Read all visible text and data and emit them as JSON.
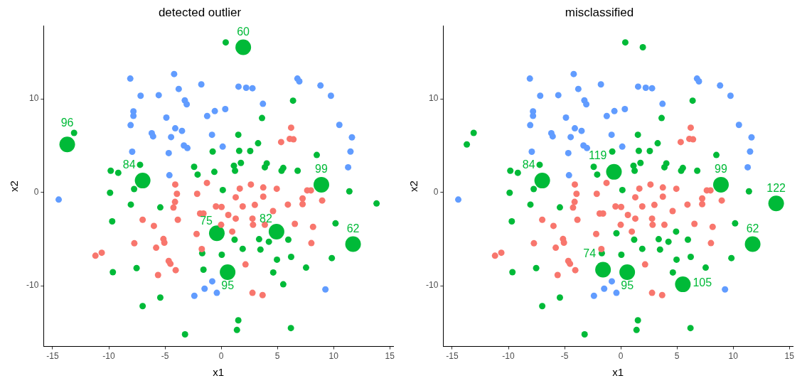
{
  "chart_data": [
    {
      "type": "scatter",
      "title": "detected outlier",
      "xlabel": "x1",
      "ylabel": "x2",
      "marker": "circle",
      "xlim": [
        -15.8,
        15.3
      ],
      "ylim": [
        -16.5,
        17.8
      ],
      "xticks": [
        -15,
        -10,
        -5,
        0,
        5,
        10,
        15
      ],
      "yticks": [
        -10,
        0,
        10
      ],
      "series": [
        {
          "color": "#619cff",
          "x": [
            -8.09,
            -4.19,
            -1.77,
            -3.78,
            -7.17,
            -5.56,
            -3.24,
            -3.07,
            -7.81,
            -7.81,
            -4.88,
            -0.57,
            -1.25,
            -8.06,
            -4.09,
            -3.49,
            -6.18,
            -6.06,
            -4.46,
            -0.82,
            -3.32,
            -3.01,
            0.13,
            -7.92,
            -4.67,
            -4.61,
            0.36,
            1.54,
            2.22,
            2.78,
            3.71,
            6.78,
            6.95,
            8.83,
            9.76,
            10.51,
            11.63,
            11.5,
            11.29,
            -14.46,
            -0.8,
            -1.48,
            -2.39,
            -0.39,
            9.27
          ],
          "values": [
            12.16,
            12.65,
            11.54,
            11.05,
            10.32,
            10.39,
            9.83,
            9.41,
            8.65,
            8.18,
            7.99,
            8.68,
            8.16,
            7.18,
            6.84,
            6.57,
            6.32,
            5.98,
            5.9,
            6.15,
            5.0,
            4.73,
            4.88,
            4.34,
            4.19,
            1.82,
            8.9,
            11.3,
            11.18,
            11.13,
            9.46,
            12.16,
            11.86,
            11.42,
            10.32,
            7.21,
            5.88,
            4.36,
            2.67,
            -0.78,
            -9.53,
            -10.32,
            -11.08,
            -10.76,
            -10.39
          ]
        },
        {
          "color": "#f8766d",
          "x": [
            -4.09,
            -1.27,
            -3.94,
            -2.14,
            6.22,
            5.33,
            6.1,
            6.43,
            1.65,
            2.64,
            3.74,
            4.94,
            7.65,
            7.98,
            1.29,
            3.74,
            7.24,
            7.24,
            8.98,
            -0.47,
            0.03,
            1.91,
            2.99,
            5.93,
            0.63,
            1.29,
            2.78,
            2.83,
            3.88,
            4.61,
            -0.01,
            0.98,
            6.55,
            8.17,
            8.02,
            2.16,
            2.78,
            3.68,
            -4.11,
            -4.25,
            -1.88,
            -1.58,
            -6.99,
            -3.86,
            -5.99,
            -2.19,
            -5.14,
            -5.06,
            -7.73,
            -5.79,
            -1.73,
            -11.19,
            -10.63,
            -4.67,
            -4.52,
            -4.05,
            -5.62
          ],
          "values": [
            0.83,
            1.0,
            -0.17,
            -0.17,
            6.91,
            5.37,
            5.71,
            5.66,
            0.39,
            0.83,
            0.51,
            0.37,
            0.2,
            0.2,
            -0.54,
            -0.47,
            -0.66,
            -1.27,
            -0.88,
            -1.52,
            -1.57,
            -1.52,
            -1.35,
            -1.32,
            -2.43,
            -2.82,
            -2.82,
            -3.48,
            -3.48,
            -2.01,
            -3.48,
            -4.21,
            -3.38,
            -3.7,
            -5.44,
            -7.72,
            -10.76,
            -11.0,
            -1.03,
            -1.64,
            -2.28,
            -2.28,
            -2.94,
            -2.94,
            -3.6,
            -4.46,
            -5.0,
            -5.39,
            -5.46,
            -5.93,
            -6.08,
            -6.79,
            -6.47,
            -7.35,
            -7.65,
            -8.33,
            -8.85
          ]
        },
        {
          "color": "#00ba38",
          "x": [
            0.4,
            -13.09,
            -0.76,
            -7.22,
            -2.41,
            -9.83,
            -9.16,
            -2.1,
            -7.75,
            -9.89,
            0.14,
            6.39,
            3.63,
            1.52,
            1.6,
            2.58,
            3.28,
            1.13,
            1.23,
            1.75,
            3.88,
            4.05,
            5.37,
            5.52,
            6.8,
            8.5,
            11.4,
            10.17,
            1.19,
            3.37,
            4.24,
            5.97,
            1.91,
            3.49,
            0.05,
            4.96,
            6.22,
            9.84,
            7.55,
            4.63,
            1.52,
            1.4,
            6.2,
            -8.04,
            -5.42,
            -9.7,
            -1.69,
            -9.64,
            -7.53,
            -5.42,
            -6.99,
            -3.22,
            -0.61,
            13.82,
            -1.58,
            5.52
          ],
          "values": [
            16.03,
            6.35,
            4.36,
            2.94,
            2.72,
            2.3,
            2.08,
            1.89,
            0.35,
            -0.05,
            0.24,
            9.8,
            7.94,
            6.15,
            4.43,
            4.41,
            5.24,
            2.84,
            2.3,
            3.14,
            2.67,
            3.09,
            2.3,
            2.6,
            2.3,
            3.99,
            0.1,
            -3.33,
            -5.07,
            -5.02,
            -5.29,
            -5.07,
            -6.05,
            -6.13,
            -6.69,
            -7.21,
            -6.91,
            -7.04,
            -8.06,
            -8.58,
            -13.7,
            -14.73,
            -14.53,
            -1.32,
            -1.62,
            -3.11,
            -6.52,
            -8.55,
            -8.11,
            -11.27,
            -12.18,
            -15.2,
            2.18,
            -1.2,
            -8.28,
            -9.85
          ]
        },
        {
          "type": "bubble",
          "color": "#00ba38",
          "x": [
            1.96,
            -13.7,
            -6.99,
            8.91,
            -0.39,
            4.92,
            11.73,
            0.57
          ],
          "values": [
            15.51,
            5.12,
            1.25,
            0.81,
            -4.39,
            -4.21,
            -5.54,
            -8.55
          ],
          "sizes": [
            1,
            1,
            1,
            1,
            1,
            1,
            1,
            1
          ]
        }
      ],
      "annotations": [
        {
          "text": "60",
          "x": 1.96,
          "y": 15.51
        },
        {
          "text": "96",
          "x": -13.7,
          "y": 5.12
        },
        {
          "text": "84",
          "x": -6.99,
          "y": 1.25
        },
        {
          "text": "99",
          "x": 8.91,
          "y": 0.81
        },
        {
          "text": "75",
          "x": -0.39,
          "y": -4.39
        },
        {
          "text": "82",
          "x": 4.92,
          "y": -4.21
        },
        {
          "text": "62",
          "x": 11.73,
          "y": -5.54
        },
        {
          "text": "95",
          "x": 0.57,
          "y": -8.55
        }
      ]
    },
    {
      "type": "scatter",
      "title": "misclassified",
      "xlabel": "x1",
      "ylabel": "x2",
      "marker": "circle",
      "xlim": [
        -15.8,
        15.3
      ],
      "ylim": [
        -16.5,
        17.8
      ],
      "xticks": [
        -15,
        -10,
        -5,
        0,
        5,
        10,
        15
      ],
      "yticks": [
        -10,
        0,
        10
      ],
      "series": [
        {
          "color": "#619cff",
          "x": [
            -8.09,
            -4.19,
            -1.77,
            -3.78,
            -7.17,
            -5.56,
            -3.24,
            -3.07,
            -7.81,
            -7.81,
            -4.88,
            -0.57,
            -1.25,
            -8.06,
            -4.09,
            -3.49,
            -6.18,
            -6.06,
            -4.46,
            -0.82,
            -3.32,
            -3.01,
            0.13,
            -7.92,
            -4.67,
            -4.61,
            0.36,
            1.54,
            2.22,
            2.78,
            3.71,
            6.78,
            6.95,
            8.83,
            9.76,
            10.51,
            11.63,
            11.5,
            11.29,
            -14.46,
            -0.8,
            -1.48,
            -2.39,
            -0.39,
            9.27
          ],
          "values": [
            12.16,
            12.65,
            11.54,
            11.05,
            10.32,
            10.39,
            9.83,
            9.41,
            8.65,
            8.18,
            7.99,
            8.68,
            8.16,
            7.18,
            6.84,
            6.57,
            6.32,
            5.98,
            5.9,
            6.15,
            5.0,
            4.73,
            4.88,
            4.34,
            4.19,
            1.82,
            8.9,
            11.3,
            11.18,
            11.13,
            9.46,
            12.16,
            11.86,
            11.42,
            10.32,
            7.21,
            5.88,
            4.36,
            2.67,
            -0.78,
            -9.53,
            -10.32,
            -11.08,
            -10.76,
            -10.39
          ]
        },
        {
          "color": "#f8766d",
          "x": [
            -4.09,
            -1.27,
            -3.94,
            -2.14,
            6.22,
            5.33,
            6.1,
            6.43,
            1.65,
            2.64,
            3.74,
            4.94,
            7.65,
            7.98,
            1.29,
            3.74,
            7.24,
            7.24,
            8.98,
            -0.47,
            0.03,
            1.91,
            2.99,
            5.93,
            0.63,
            1.29,
            2.78,
            2.83,
            3.88,
            4.61,
            -0.01,
            0.98,
            6.55,
            8.17,
            8.02,
            2.16,
            2.78,
            3.68,
            -4.11,
            -4.25,
            -1.88,
            -1.58,
            -6.99,
            -3.86,
            -5.99,
            -2.19,
            -5.14,
            -5.06,
            -7.73,
            -5.79,
            -1.73,
            -11.19,
            -10.63,
            -4.67,
            -4.52,
            -4.05,
            -5.62
          ],
          "values": [
            0.83,
            1.0,
            -0.17,
            -0.17,
            6.91,
            5.37,
            5.71,
            5.66,
            0.39,
            0.83,
            0.51,
            0.37,
            0.2,
            0.2,
            -0.54,
            -0.47,
            -0.66,
            -1.27,
            -0.88,
            -1.52,
            -1.57,
            -1.52,
            -1.35,
            -1.32,
            -2.43,
            -2.82,
            -2.82,
            -3.48,
            -3.48,
            -2.01,
            -3.48,
            -4.21,
            -3.38,
            -3.7,
            -5.44,
            -7.72,
            -10.76,
            -11.0,
            -1.03,
            -1.64,
            -2.28,
            -2.28,
            -2.94,
            -2.94,
            -3.6,
            -4.46,
            -5.0,
            -5.39,
            -5.46,
            -5.93,
            -6.08,
            -6.79,
            -6.47,
            -7.35,
            -7.65,
            -8.33,
            -8.85
          ]
        },
        {
          "color": "#00ba38",
          "x": [
            0.4,
            -13.09,
            -0.76,
            -7.22,
            -2.41,
            -9.83,
            -9.16,
            -2.1,
            -7.75,
            -9.89,
            0.14,
            6.39,
            3.63,
            1.52,
            1.6,
            2.58,
            3.28,
            1.13,
            1.23,
            1.75,
            3.88,
            4.05,
            5.37,
            5.52,
            6.8,
            8.5,
            11.4,
            10.17,
            1.19,
            3.37,
            4.24,
            5.97,
            1.91,
            3.49,
            0.05,
            4.96,
            6.22,
            9.84,
            7.55,
            4.63,
            1.52,
            1.4,
            6.2,
            -8.04,
            -5.42,
            -9.7,
            -1.69,
            -9.64,
            -7.53,
            -5.42,
            -6.99,
            -3.22,
            1.96,
            -13.7,
            -0.39,
            4.92
          ],
          "values": [
            16.03,
            6.35,
            4.36,
            2.94,
            2.72,
            2.3,
            2.08,
            1.89,
            0.35,
            -0.05,
            0.24,
            9.8,
            7.94,
            6.15,
            4.43,
            4.41,
            5.24,
            2.84,
            2.3,
            3.14,
            2.67,
            3.09,
            2.3,
            2.6,
            2.3,
            3.99,
            0.1,
            -3.33,
            -5.07,
            -5.02,
            -5.29,
            -5.07,
            -6.05,
            -6.13,
            -6.69,
            -7.21,
            -6.91,
            -7.04,
            -8.06,
            -8.58,
            -13.7,
            -14.73,
            -14.53,
            -1.32,
            -1.62,
            -3.11,
            -6.52,
            -8.55,
            -8.11,
            -11.27,
            -12.18,
            -15.2,
            15.51,
            5.12,
            -4.39,
            -4.21
          ]
        },
        {
          "type": "bubble",
          "color": "#00ba38",
          "x": [
            -6.99,
            -0.61,
            8.91,
            13.82,
            11.73,
            -1.58,
            0.57,
            5.52
          ],
          "values": [
            1.25,
            2.18,
            0.81,
            -1.2,
            -5.54,
            -8.28,
            -8.55,
            -9.85
          ],
          "sizes": [
            1,
            1,
            1,
            1,
            1,
            1,
            1,
            1
          ]
        }
      ],
      "annotations": [
        {
          "text": "84",
          "x": -6.99,
          "y": 1.25
        },
        {
          "text": "119",
          "x": -0.61,
          "y": 2.18
        },
        {
          "text": "99",
          "x": 8.91,
          "y": 0.81
        },
        {
          "text": "122",
          "x": 13.82,
          "y": -1.2
        },
        {
          "text": "62",
          "x": 11.73,
          "y": -5.54
        },
        {
          "text": "74",
          "x": -1.58,
          "y": -8.28
        },
        {
          "text": "95",
          "x": 0.57,
          "y": -8.55
        },
        {
          "text": "105",
          "x": 5.52,
          "y": -9.85
        }
      ]
    }
  ]
}
